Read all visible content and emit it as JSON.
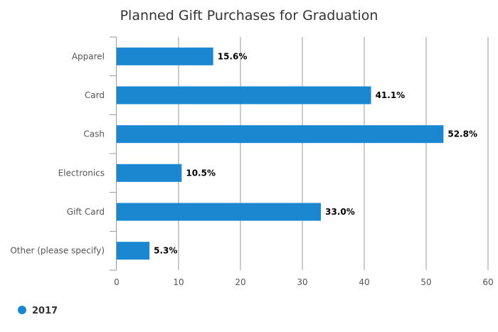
{
  "chart_data": {
    "type": "bar",
    "orientation": "horizontal",
    "title": "Planned Gift Purchases for Graduation",
    "categories": [
      "Apparel",
      "Card",
      "Cash",
      "Electronics",
      "Gift Card",
      "Other (please specify)"
    ],
    "series": [
      {
        "name": "2017",
        "color": "#1a87d0",
        "values": [
          15.6,
          41.1,
          52.8,
          10.5,
          33.0,
          5.3
        ],
        "labels": [
          "15.6%",
          "41.1%",
          "52.8%",
          "10.5%",
          "33.0%",
          "5.3%"
        ]
      }
    ],
    "xlim": [
      0,
      60
    ],
    "x_ticks": [
      0,
      10,
      20,
      30,
      40,
      50,
      60
    ],
    "grid": true,
    "legend": "bottom-left"
  }
}
